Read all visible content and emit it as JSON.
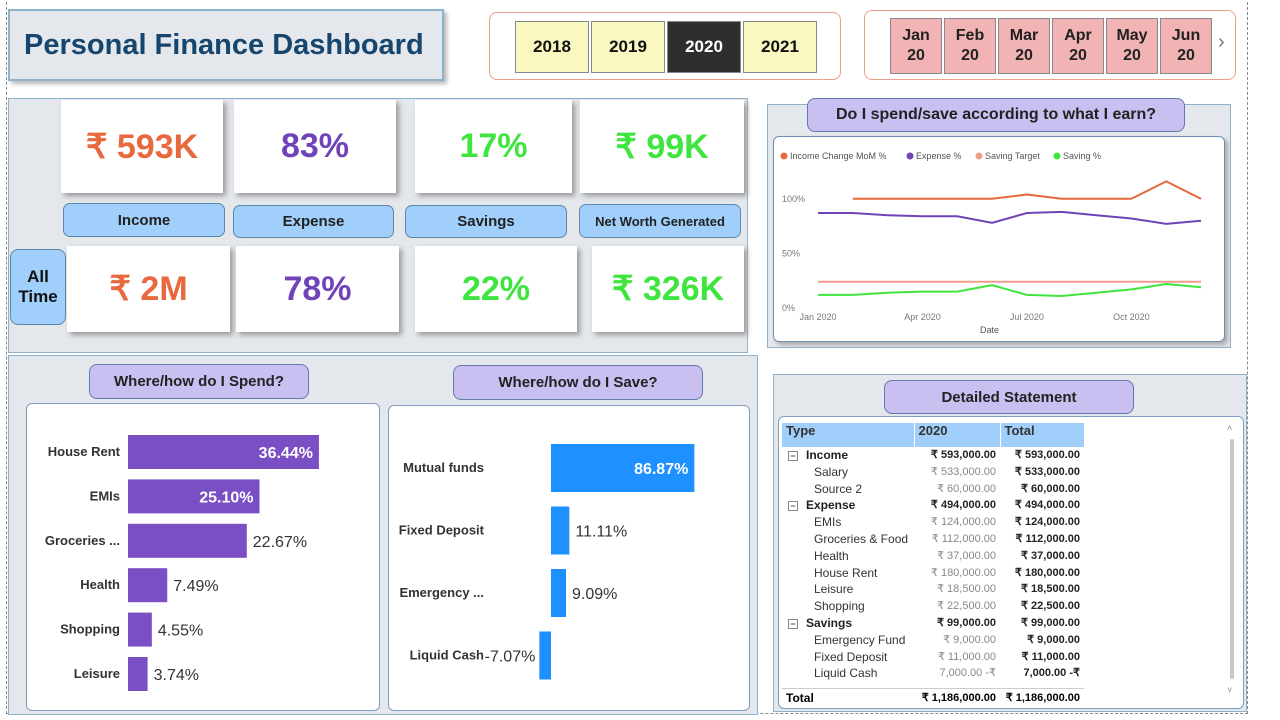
{
  "title": "Personal Finance Dashboard",
  "years": [
    "2018",
    "2019",
    "2020",
    "2021"
  ],
  "selected_year": "2020",
  "months": [
    {
      "m": "Jan",
      "y": "20"
    },
    {
      "m": "Feb",
      "y": "20"
    },
    {
      "m": "Mar",
      "y": "20"
    },
    {
      "m": "Apr",
      "y": "20"
    },
    {
      "m": "May",
      "y": "20"
    },
    {
      "m": "Jun",
      "y": "20"
    }
  ],
  "months_next_icon": "chevron-right-icon",
  "kpi": {
    "labels": {
      "income": "Income",
      "expense": "Expense",
      "savings": "Savings",
      "networth": "Net Worth Generated"
    },
    "period": {
      "income": "₹ 593K",
      "expense": "83%",
      "savings": "17%",
      "networth": "₹ 99K"
    },
    "all_time_label": "All Time",
    "all_time": {
      "income": "₹ 2M",
      "expense": "78%",
      "savings": "22%",
      "networth": "₹ 326K"
    }
  },
  "colors": {
    "income": "#e8693e",
    "expense": "#7043b8",
    "savings": "#3fe53f",
    "saving_target": "#ef9b8d",
    "bar_spend": "#7b4fc4",
    "bar_save": "#1e90ff"
  },
  "trend": {
    "title": "Do I spend/save according to what I earn?",
    "xlabel": "Date",
    "legend": [
      "Income Change MoM %",
      "Expense %",
      "Saving Target",
      "Saving %"
    ]
  },
  "spend": {
    "title": "Where/how do I Spend?"
  },
  "save": {
    "title": "Where/how do I Save?"
  },
  "chart_data": [
    {
      "type": "line",
      "title": "Do I spend/save according to what I earn?",
      "xlabel": "Date",
      "ylabel": "",
      "x": [
        "2020-01",
        "2020-02",
        "2020-03",
        "2020-04",
        "2020-05",
        "2020-06",
        "2020-07",
        "2020-08",
        "2020-09",
        "2020-10",
        "2020-11",
        "2020-12"
      ],
      "x_ticks": [
        "Jan 2020",
        "Apr 2020",
        "Jul 2020",
        "Oct 2020"
      ],
      "y_ticks": [
        "0%",
        "50%",
        "100%"
      ],
      "ylim": [
        0,
        120
      ],
      "series": [
        {
          "name": "Income Change MoM %",
          "values": [
            null,
            100,
            100,
            100,
            100,
            100,
            104,
            100,
            100,
            100,
            116,
            100
          ]
        },
        {
          "name": "Expense %",
          "values": [
            87,
            87,
            85,
            84,
            84,
            78,
            87,
            88,
            85,
            82,
            77,
            80
          ]
        },
        {
          "name": "Saving Target",
          "values": [
            24,
            24,
            24,
            24,
            24,
            24,
            24,
            24,
            24,
            24,
            24,
            24
          ]
        },
        {
          "name": "Saving %",
          "values": [
            12,
            12,
            14,
            15,
            15,
            21,
            12,
            11,
            14,
            17,
            22,
            19
          ]
        }
      ],
      "legend_position": "top-left",
      "grid": false
    },
    {
      "type": "bar",
      "orientation": "horizontal",
      "title": "Where/how do I Spend?",
      "categories": [
        "House Rent",
        "EMIs",
        "Groceries ...",
        "Health",
        "Shopping",
        "Leisure"
      ],
      "values": [
        36.44,
        25.1,
        22.67,
        7.49,
        4.55,
        3.74
      ],
      "value_labels": [
        "36.44%",
        "25.10%",
        "22.67%",
        "7.49%",
        "4.55%",
        "3.74%"
      ]
    },
    {
      "type": "bar",
      "orientation": "horizontal",
      "title": "Where/how do I Save?",
      "categories": [
        "Mutual funds",
        "Fixed Deposit",
        "Emergency ...",
        "Liquid Cash"
      ],
      "values": [
        86.87,
        11.11,
        9.09,
        -7.07
      ],
      "value_labels": [
        "86.87%",
        "11.11%",
        "9.09%",
        "-7.07%"
      ]
    },
    {
      "type": "table",
      "title": "Detailed Statement",
      "columns": [
        "Type",
        "2020",
        "Total"
      ],
      "rows": [
        {
          "level": 0,
          "type": "Income",
          "y2020": "₹ 593,000.00",
          "total": "₹ 593,000.00"
        },
        {
          "level": 1,
          "type": "Salary",
          "y2020": "₹ 533,000.00",
          "total": "₹ 533,000.00"
        },
        {
          "level": 1,
          "type": "Source 2",
          "y2020": "₹ 60,000.00",
          "total": "₹ 60,000.00"
        },
        {
          "level": 0,
          "type": "Expense",
          "y2020": "₹ 494,000.00",
          "total": "₹ 494,000.00"
        },
        {
          "level": 1,
          "type": "EMIs",
          "y2020": "₹ 124,000.00",
          "total": "₹ 124,000.00"
        },
        {
          "level": 1,
          "type": "Groceries & Food",
          "y2020": "₹ 112,000.00",
          "total": "₹ 112,000.00"
        },
        {
          "level": 1,
          "type": "Health",
          "y2020": "₹ 37,000.00",
          "total": "₹ 37,000.00"
        },
        {
          "level": 1,
          "type": "House Rent",
          "y2020": "₹ 180,000.00",
          "total": "₹ 180,000.00"
        },
        {
          "level": 1,
          "type": "Leisure",
          "y2020": "₹ 18,500.00",
          "total": "₹ 18,500.00"
        },
        {
          "level": 1,
          "type": "Shopping",
          "y2020": "₹ 22,500.00",
          "total": "₹ 22,500.00"
        },
        {
          "level": 0,
          "type": "Savings",
          "y2020": "₹ 99,000.00",
          "total": "₹ 99,000.00"
        },
        {
          "level": 1,
          "type": "Emergency Fund",
          "y2020": "₹ 9,000.00",
          "total": "₹ 9,000.00"
        },
        {
          "level": 1,
          "type": "Fixed Deposit",
          "y2020": "₹ 11,000.00",
          "total": "₹ 11,000.00"
        },
        {
          "level": 1,
          "type": "Liquid Cash",
          "y2020": "7,000.00 -₹",
          "total": "7,000.00 -₹"
        }
      ],
      "total_row": {
        "type": "Total",
        "y2020": "₹ 1,186,000.00",
        "total": "₹ 1,186,000.00"
      }
    }
  ],
  "statement": {
    "title": "Detailed Statement"
  }
}
